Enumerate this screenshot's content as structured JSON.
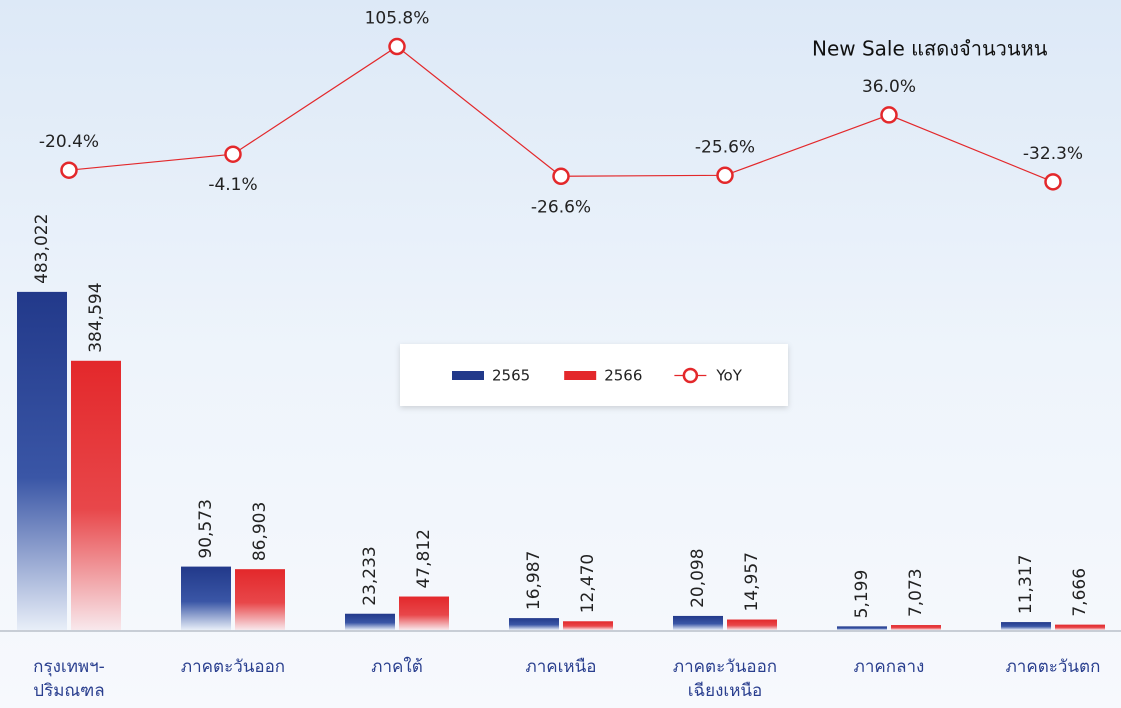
{
  "chart_data": {
    "type": "bar_line",
    "title": "New Sale แสดงจำนวนหน",
    "categories": [
      [
        "กรุงเทพฯ-",
        "ปริมณฑล"
      ],
      [
        "ภาคตะวันออก"
      ],
      [
        "ภาคใต้"
      ],
      [
        "ภาคเหนือ"
      ],
      [
        "ภาคตะวันออก",
        "เฉียงเหนือ"
      ],
      [
        "ภาคกลาง"
      ],
      [
        "ภาคตะวันตก"
      ]
    ],
    "series": [
      {
        "name": "2565",
        "type": "bar",
        "color": "#22398a",
        "values": [
          483022,
          90573,
          23233,
          16987,
          20098,
          5199,
          11317
        ],
        "value_labels": [
          "483,022",
          "90,573",
          "23,233",
          "16,987",
          "20,098",
          "5,199",
          "11,317"
        ]
      },
      {
        "name": "2566",
        "type": "bar",
        "color": "#e3282b",
        "values": [
          384594,
          86903,
          47812,
          12470,
          14957,
          7073,
          7666
        ],
        "value_labels": [
          "384,594",
          "86,903",
          "47,812",
          "12,470",
          "14,957",
          "7,073",
          "7,666"
        ]
      },
      {
        "name": "YoY",
        "type": "line",
        "axis": "y2",
        "color": "#e3282b",
        "values": [
          -20.4,
          -4.1,
          105.8,
          -26.6,
          -25.6,
          36.0,
          -32.3
        ],
        "value_labels": [
          "-20.4%",
          "-4.1%",
          "105.8%",
          "-26.6%",
          "-25.6%",
          "36.0%",
          "-32.3%"
        ]
      }
    ],
    "ylim": [
      0,
      700000
    ],
    "y2lim": [
      -60,
      140
    ],
    "legend": "center"
  }
}
